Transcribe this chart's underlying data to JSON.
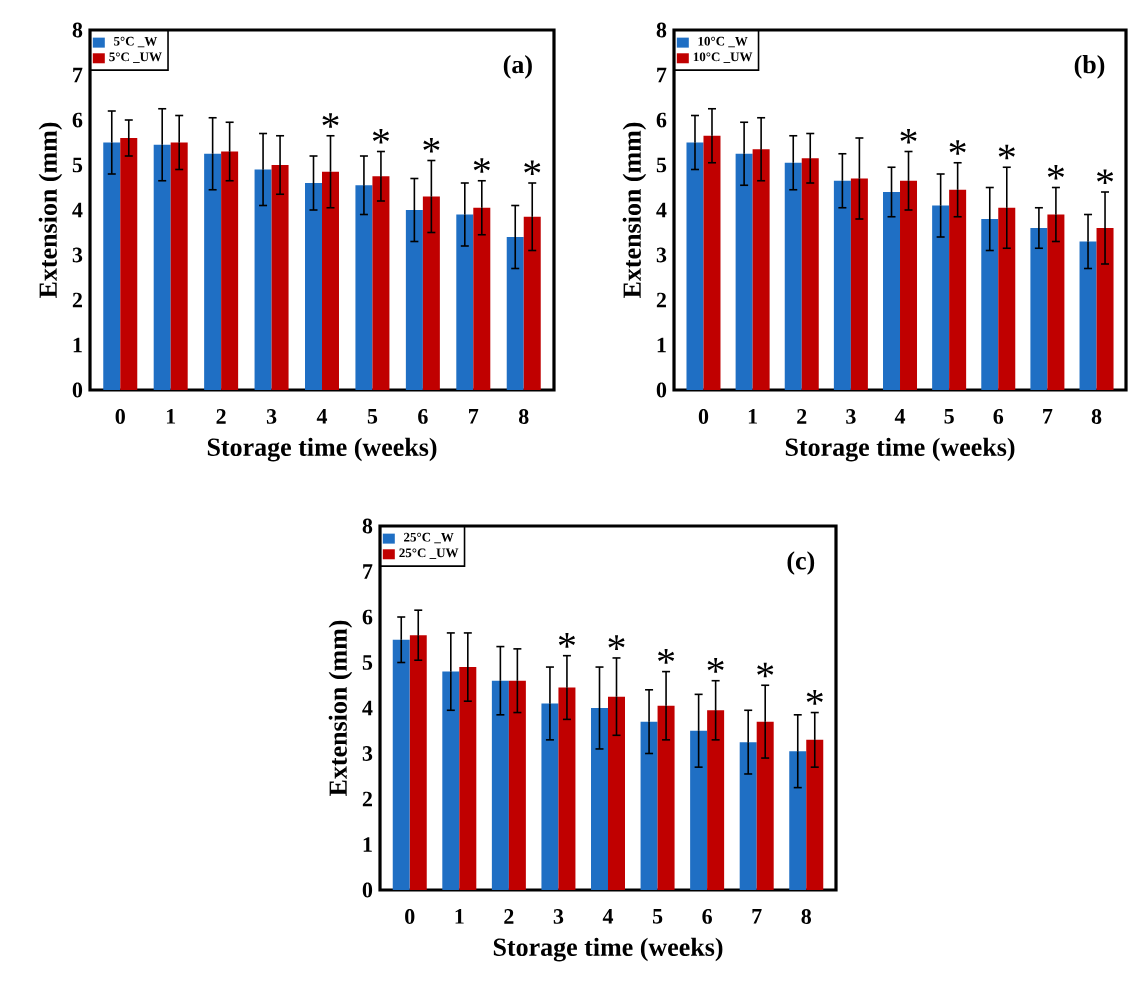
{
  "chart_data": [
    {
      "type": "bar",
      "xlabel": "Storage time (weeks)",
      "ylabel": "Extension (mm)",
      "categories": [
        "0",
        "1",
        "2",
        "3",
        "4",
        "5",
        "6",
        "7",
        "8"
      ],
      "ylim": [
        0,
        8
      ],
      "yticks": [
        0,
        1,
        2,
        3,
        4,
        5,
        6,
        7,
        8
      ],
      "legend": "top left",
      "series": [
        {
          "name": "5°C _W",
          "color": "#1f6fc4",
          "values": [
            5.5,
            5.45,
            5.25,
            4.9,
            4.6,
            4.55,
            4.0,
            3.9,
            3.4
          ],
          "errors": [
            0.7,
            0.8,
            0.8,
            0.8,
            0.6,
            0.65,
            0.7,
            0.7,
            0.7
          ]
        },
        {
          "name": "5°C _UW",
          "color": "#c00000",
          "values": [
            5.6,
            5.5,
            5.3,
            5.0,
            4.85,
            4.75,
            4.3,
            4.05,
            3.85
          ],
          "errors": [
            0.4,
            0.6,
            0.65,
            0.65,
            0.8,
            0.55,
            0.8,
            0.6,
            0.75
          ]
        }
      ],
      "annotations": [
        "(a)",
        {
          "text": "*",
          "x": "4",
          "y": 4.85
        },
        {
          "text": "*",
          "x": "5",
          "y": 4.75
        },
        {
          "text": "*",
          "x": "6",
          "y": 4.3
        },
        {
          "text": "*",
          "x": "7",
          "y": 4.05
        },
        {
          "text": "*",
          "x": "8",
          "y": 3.85
        }
      ]
    },
    {
      "type": "bar",
      "xlabel": "Storage time (weeks)",
      "ylabel": "Extension (mm)",
      "categories": [
        "0",
        "1",
        "2",
        "3",
        "4",
        "5",
        "6",
        "7",
        "8"
      ],
      "ylim": [
        0,
        8
      ],
      "yticks": [
        0,
        1,
        2,
        3,
        4,
        5,
        6,
        7,
        8
      ],
      "legend": "top left",
      "series": [
        {
          "name": "10°C _W",
          "color": "#1f6fc4",
          "values": [
            5.5,
            5.25,
            5.05,
            4.65,
            4.4,
            4.1,
            3.8,
            3.6,
            3.3
          ],
          "errors": [
            0.6,
            0.7,
            0.6,
            0.6,
            0.55,
            0.7,
            0.7,
            0.45,
            0.6
          ]
        },
        {
          "name": "10°C _UW",
          "color": "#c00000",
          "values": [
            5.65,
            5.35,
            5.15,
            4.7,
            4.65,
            4.45,
            4.05,
            3.9,
            3.6
          ],
          "errors": [
            0.6,
            0.7,
            0.55,
            0.9,
            0.65,
            0.6,
            0.9,
            0.6,
            0.8
          ]
        }
      ],
      "annotations": [
        "(b)",
        {
          "text": "*",
          "x": "4",
          "y": 4.65
        },
        {
          "text": "*",
          "x": "5",
          "y": 4.45
        },
        {
          "text": "*",
          "x": "6",
          "y": 4.05
        },
        {
          "text": "*",
          "x": "7",
          "y": 3.9
        },
        {
          "text": "*",
          "x": "8",
          "y": 3.6
        }
      ]
    },
    {
      "type": "bar",
      "xlabel": "Storage time (weeks)",
      "ylabel": "Extension (mm)",
      "categories": [
        "0",
        "1",
        "2",
        "3",
        "4",
        "5",
        "6",
        "7",
        "8"
      ],
      "ylim": [
        0,
        8
      ],
      "yticks": [
        0,
        1,
        2,
        3,
        4,
        5,
        6,
        7,
        8
      ],
      "legend": "top left",
      "series": [
        {
          "name": "25°C _W",
          "color": "#1f6fc4",
          "values": [
            5.5,
            4.8,
            4.6,
            4.1,
            4.0,
            3.7,
            3.5,
            3.25,
            3.05
          ],
          "errors": [
            0.5,
            0.85,
            0.75,
            0.8,
            0.9,
            0.7,
            0.8,
            0.7,
            0.8
          ]
        },
        {
          "name": "25°C _UW",
          "color": "#c00000",
          "values": [
            5.6,
            4.9,
            4.6,
            4.45,
            4.25,
            4.05,
            3.95,
            3.7,
            3.3
          ],
          "errors": [
            0.55,
            0.75,
            0.7,
            0.7,
            0.85,
            0.75,
            0.65,
            0.8,
            0.6
          ]
        }
      ],
      "annotations": [
        "(c)",
        {
          "text": "*",
          "x": "3",
          "y": 4.45
        },
        {
          "text": "*",
          "x": "4",
          "y": 4.25
        },
        {
          "text": "*",
          "x": "5",
          "y": 4.05
        },
        {
          "text": "*",
          "x": "6",
          "y": 3.95
        },
        {
          "text": "*",
          "x": "7",
          "y": 3.7
        },
        {
          "text": "*",
          "x": "8",
          "y": 3.3
        }
      ]
    }
  ]
}
